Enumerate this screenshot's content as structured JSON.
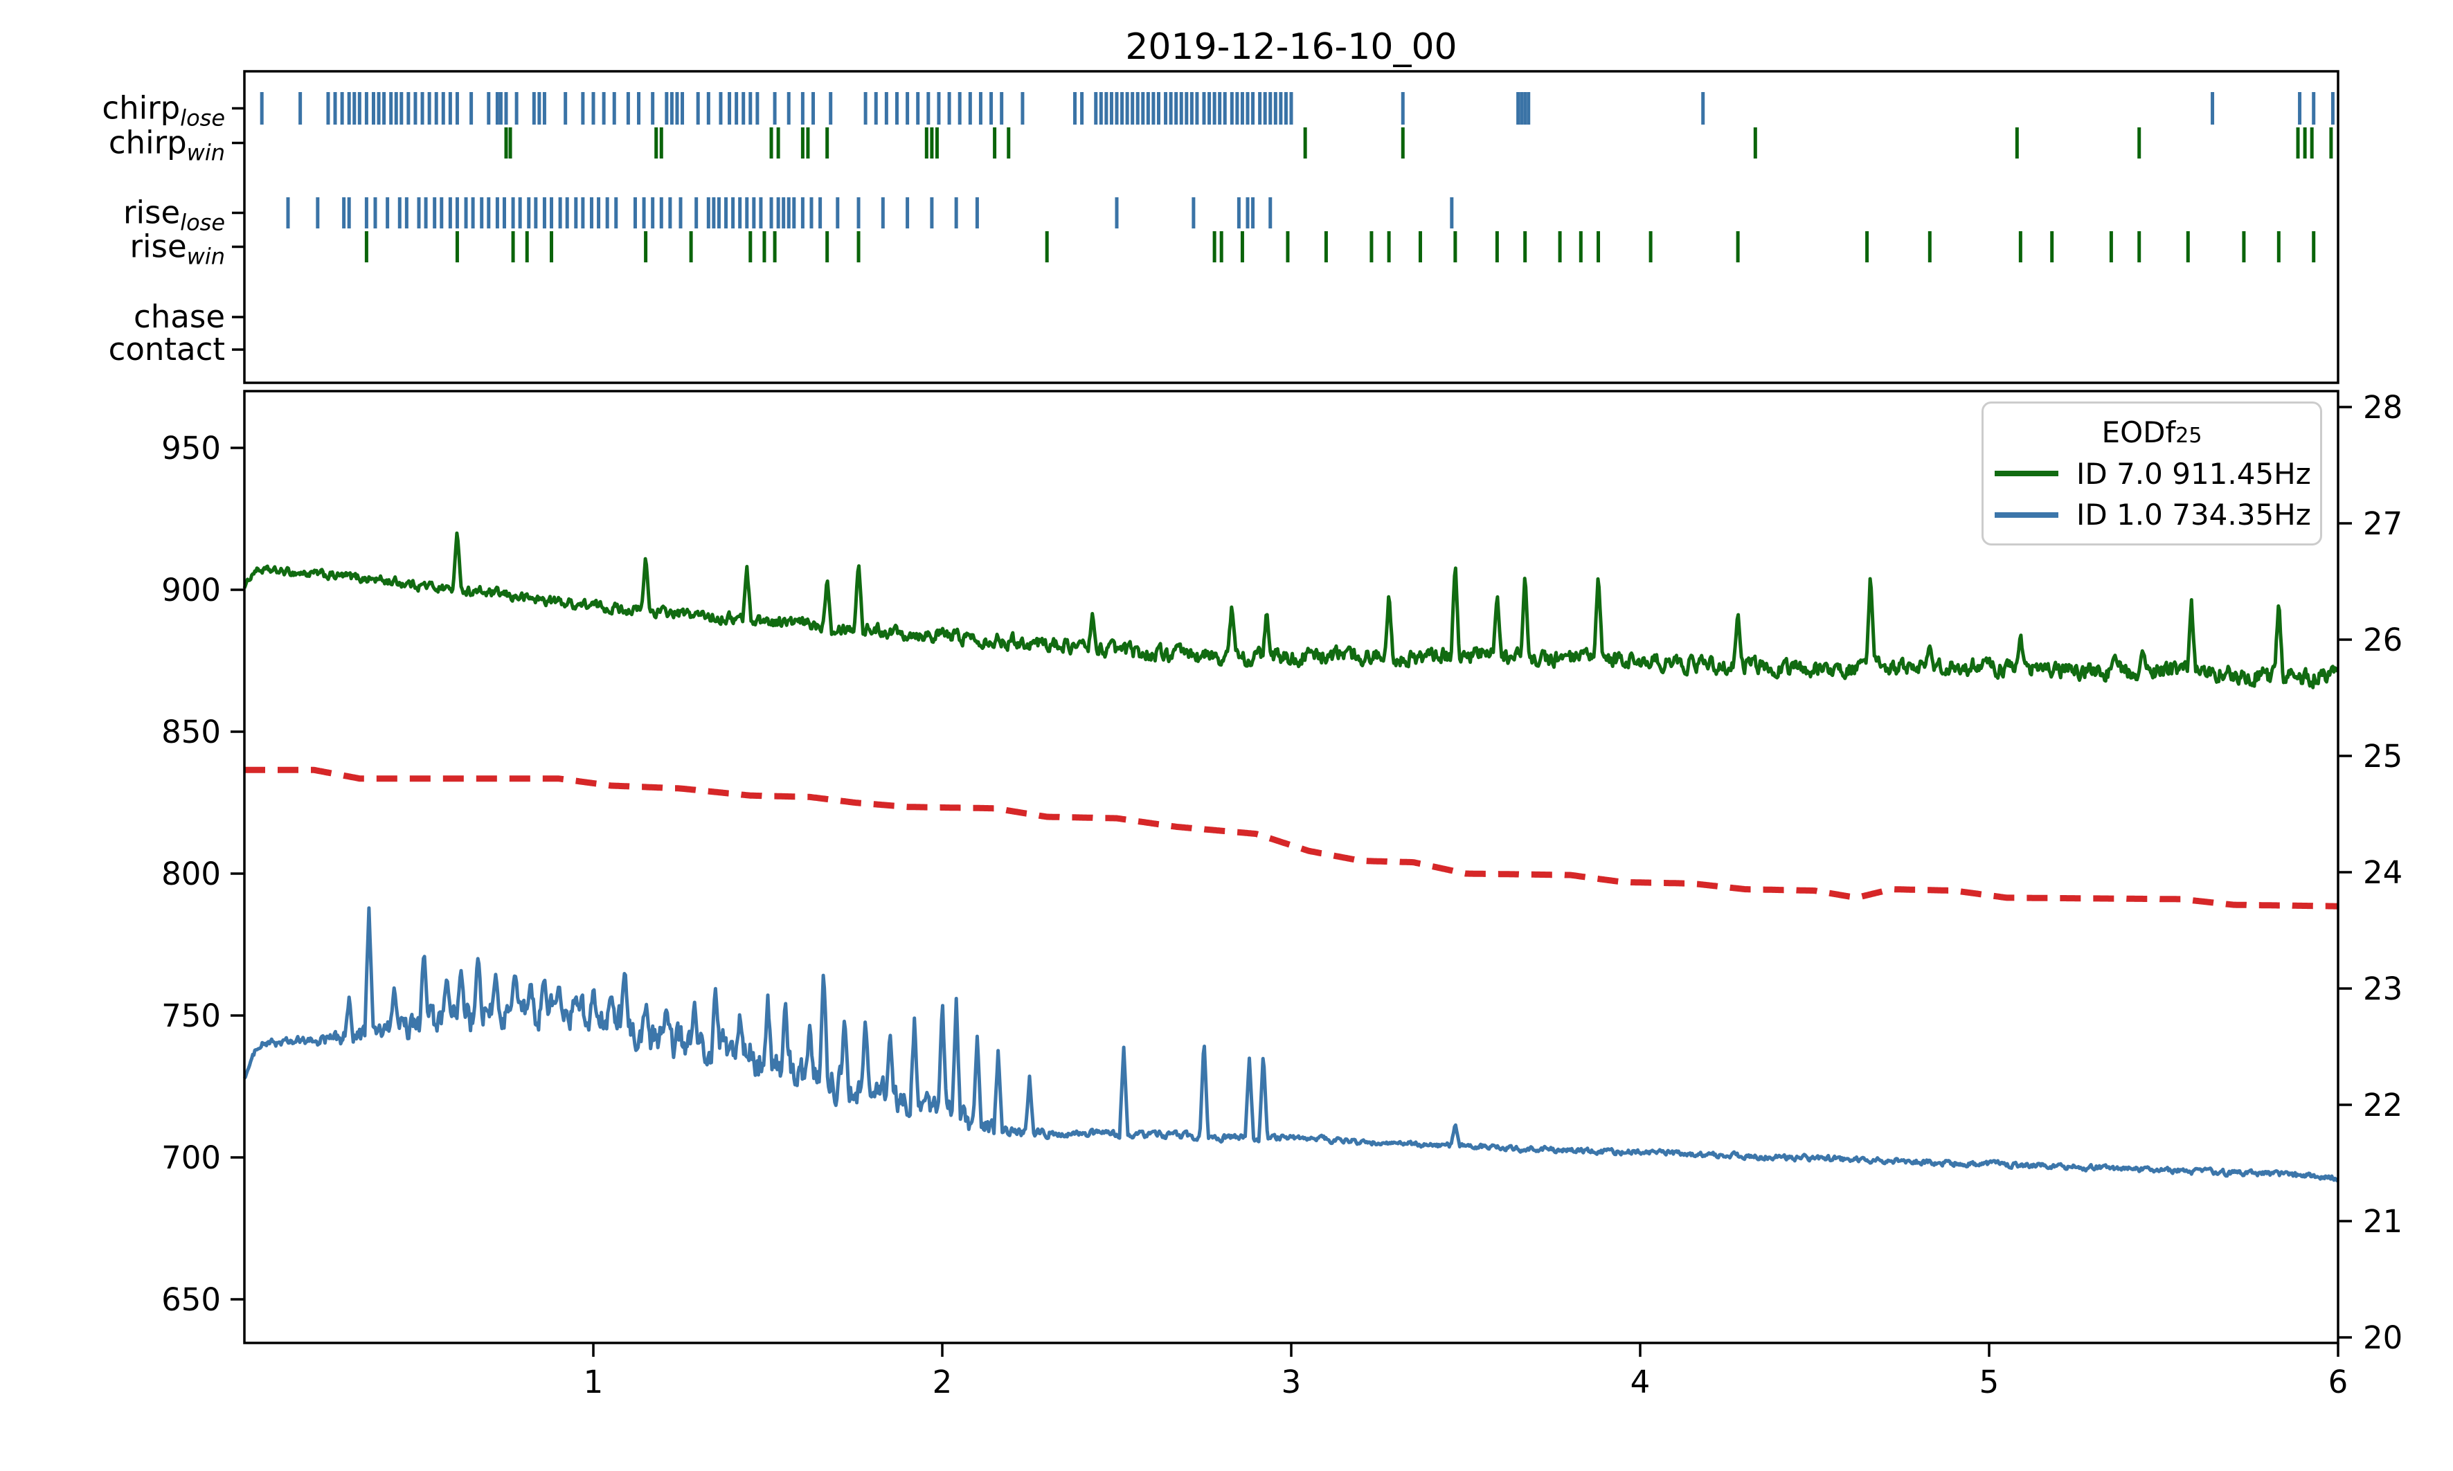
{
  "title": "2019-12-16-10_00",
  "chart_data": {
    "type": "line",
    "title": "2019-12-16-10_00",
    "x_range": [
      0,
      6
    ],
    "x_ticks": [
      "1",
      "2",
      "3",
      "4",
      "5",
      "6"
    ],
    "left_axis": {
      "ticks": [
        "650",
        "700",
        "750",
        "800",
        "850",
        "900",
        "950"
      ],
      "range": [
        634,
        970
      ]
    },
    "right_axis": {
      "ticks": [
        "20",
        "21",
        "22",
        "23",
        "24",
        "25",
        "26",
        "27",
        "28"
      ],
      "range": [
        19.95,
        28.13
      ]
    },
    "raster": {
      "rows": [
        {
          "id": "chirp_lose",
          "label_base": "chirp",
          "label_sub": "lose",
          "color": "#3a73a6",
          "events": [
            0.05,
            0.16,
            0.24,
            0.26,
            0.28,
            0.3,
            0.315,
            0.33,
            0.35,
            0.37,
            0.385,
            0.4,
            0.42,
            0.435,
            0.45,
            0.47,
            0.49,
            0.51,
            0.53,
            0.55,
            0.57,
            0.59,
            0.61,
            0.65,
            0.7,
            0.725,
            0.735,
            0.75,
            0.78,
            0.83,
            0.845,
            0.86,
            0.92,
            0.97,
            1.0,
            1.03,
            1.06,
            1.1,
            1.13,
            1.17,
            1.21,
            1.225,
            1.24,
            1.255,
            1.3,
            1.33,
            1.365,
            1.39,
            1.41,
            1.43,
            1.45,
            1.47,
            1.52,
            1.56,
            1.6,
            1.63,
            1.68,
            1.78,
            1.81,
            1.84,
            1.87,
            1.9,
            1.93,
            1.96,
            1.99,
            2.02,
            2.05,
            2.08,
            2.11,
            2.14,
            2.17,
            2.23,
            2.38,
            2.4,
            2.44,
            2.455,
            2.47,
            2.485,
            2.5,
            2.515,
            2.53,
            2.545,
            2.56,
            2.575,
            2.59,
            2.605,
            2.62,
            2.64,
            2.655,
            2.67,
            2.685,
            2.7,
            2.715,
            2.73,
            2.75,
            2.765,
            2.78,
            2.795,
            2.81,
            2.83,
            2.845,
            2.86,
            2.875,
            2.89,
            2.91,
            2.925,
            2.94,
            2.955,
            2.97,
            2.985,
            3.0,
            3.32,
            3.65,
            3.66,
            3.67,
            3.68,
            4.18,
            5.64,
            5.89,
            5.93,
            5.985
          ]
        },
        {
          "id": "chirp_win",
          "label_base": "chirp",
          "label_sub": "win",
          "color": "#0a640a",
          "events": [
            0.75,
            0.762,
            1.18,
            1.195,
            1.51,
            1.53,
            1.6,
            1.615,
            1.67,
            1.955,
            1.97,
            1.985,
            2.15,
            2.19,
            3.04,
            3.32,
            4.33,
            5.08,
            5.43,
            5.885,
            5.905,
            5.925,
            5.98
          ]
        },
        {
          "id": "rise_lose",
          "label_base": "rise",
          "label_sub": "lose",
          "color": "#3a73a6",
          "events": [
            0.125,
            0.21,
            0.285,
            0.3,
            0.35,
            0.375,
            0.41,
            0.445,
            0.465,
            0.5,
            0.52,
            0.545,
            0.565,
            0.59,
            0.61,
            0.635,
            0.655,
            0.68,
            0.7,
            0.725,
            0.745,
            0.77,
            0.79,
            0.815,
            0.835,
            0.86,
            0.88,
            0.905,
            0.925,
            0.95,
            0.97,
            0.995,
            1.015,
            1.04,
            1.065,
            1.12,
            1.145,
            1.17,
            1.195,
            1.22,
            1.25,
            1.295,
            1.33,
            1.345,
            1.36,
            1.38,
            1.4,
            1.42,
            1.44,
            1.46,
            1.48,
            1.51,
            1.53,
            1.545,
            1.56,
            1.575,
            1.6,
            1.625,
            1.65,
            1.7,
            1.76,
            1.83,
            1.9,
            1.97,
            2.04,
            2.1,
            2.5,
            2.72,
            2.85,
            2.875,
            2.89,
            2.94,
            3.46
          ]
        },
        {
          "id": "rise_win",
          "label_base": "rise",
          "label_sub": "win",
          "color": "#0a640a",
          "events": [
            0.35,
            0.61,
            0.77,
            0.81,
            0.88,
            1.15,
            1.28,
            1.45,
            1.49,
            1.52,
            1.67,
            1.76,
            2.3,
            2.78,
            2.8,
            2.86,
            2.99,
            3.1,
            3.23,
            3.28,
            3.37,
            3.47,
            3.59,
            3.67,
            3.77,
            3.83,
            3.88,
            4.03,
            4.28,
            4.65,
            4.83,
            5.09,
            5.18,
            5.35,
            5.43,
            5.57,
            5.73,
            5.83,
            5.93
          ]
        },
        {
          "id": "chase",
          "label_base": "chase",
          "label_sub": "",
          "color": "#3a73a6",
          "events": []
        },
        {
          "id": "contact",
          "label_base": "contact",
          "label_sub": "",
          "color": "#3a73a6",
          "events": []
        }
      ]
    },
    "series": [
      {
        "name": "ID 7.0 911.45Hz",
        "color": "#116b11",
        "style": "solid",
        "keypoints": [
          [
            0.0,
            901,
            0.5
          ],
          [
            0.03,
            907,
            1.0
          ],
          [
            0.15,
            906,
            1.2
          ],
          [
            0.35,
            904,
            1.4
          ],
          [
            0.55,
            901,
            1.4
          ],
          [
            0.75,
            898,
            1.5
          ],
          [
            0.95,
            895,
            1.5
          ],
          [
            1.15,
            892.5,
            1.5
          ],
          [
            1.35,
            890.5,
            1.6
          ],
          [
            1.55,
            888.5,
            1.8
          ],
          [
            1.75,
            886.5,
            1.8
          ],
          [
            1.95,
            884.5,
            2.0
          ],
          [
            2.15,
            882.5,
            2.0
          ],
          [
            2.35,
            880.5,
            2.0
          ],
          [
            2.55,
            878,
            2.2
          ],
          [
            2.75,
            876.5,
            2.4
          ],
          [
            2.95,
            876,
            2.4
          ],
          [
            3.15,
            877,
            2.4
          ],
          [
            3.35,
            876,
            2.4
          ],
          [
            3.55,
            877,
            2.4
          ],
          [
            3.75,
            875.5,
            2.4
          ],
          [
            3.95,
            875,
            2.4
          ],
          [
            4.15,
            874,
            2.4
          ],
          [
            4.35,
            873,
            2.4
          ],
          [
            4.55,
            872,
            2.4
          ],
          [
            4.75,
            872.5,
            2.4
          ],
          [
            4.95,
            873,
            2.4
          ],
          [
            5.15,
            872,
            2.4
          ],
          [
            5.35,
            871,
            2.4
          ],
          [
            5.55,
            871,
            2.6
          ],
          [
            5.75,
            870,
            2.8
          ],
          [
            5.9,
            869,
            3.0
          ],
          [
            6.0,
            870,
            2.0
          ]
        ],
        "spikes": [
          [
            0.61,
            921
          ],
          [
            1.15,
            912
          ],
          [
            1.44,
            908
          ],
          [
            1.67,
            905
          ],
          [
            1.76,
            911
          ],
          [
            2.43,
            891
          ],
          [
            2.83,
            895
          ],
          [
            2.93,
            893
          ],
          [
            3.28,
            900
          ],
          [
            3.47,
            911
          ],
          [
            3.59,
            898
          ],
          [
            3.67,
            905
          ],
          [
            3.88,
            907
          ],
          [
            4.28,
            893
          ],
          [
            4.66,
            906
          ],
          [
            4.83,
            881
          ],
          [
            5.09,
            884
          ],
          [
            5.36,
            877
          ],
          [
            5.44,
            880
          ],
          [
            5.58,
            896
          ],
          [
            5.83,
            897
          ]
        ]
      },
      {
        "name": "ID 1.0 734.35Hz",
        "color": "#3c76aa",
        "style": "solid",
        "keypoints": [
          [
            0.0,
            728,
            0.5
          ],
          [
            0.04,
            740,
            1.0
          ],
          [
            0.2,
            741,
            1.5
          ],
          [
            0.35,
            743,
            3.0
          ],
          [
            0.5,
            746,
            4.0
          ],
          [
            0.65,
            749,
            4.5
          ],
          [
            0.8,
            752,
            4.5
          ],
          [
            0.95,
            751,
            4.5
          ],
          [
            1.1,
            746,
            5.0
          ],
          [
            1.25,
            741,
            5.5
          ],
          [
            1.4,
            737,
            5.5
          ],
          [
            1.55,
            731,
            5.5
          ],
          [
            1.7,
            726,
            5.0
          ],
          [
            1.85,
            721,
            4.5
          ],
          [
            2.0,
            716,
            4.0
          ],
          [
            2.1,
            711,
            3.0
          ],
          [
            2.2,
            709,
            1.5
          ],
          [
            2.4,
            708.5,
            1.0
          ],
          [
            2.6,
            708,
            1.0
          ],
          [
            2.8,
            707,
            1.0
          ],
          [
            3.0,
            707,
            0.8
          ],
          [
            3.2,
            705.5,
            0.8
          ],
          [
            3.5,
            704,
            0.8
          ],
          [
            3.8,
            702.5,
            0.8
          ],
          [
            4.1,
            701.5,
            0.8
          ],
          [
            4.4,
            700,
            0.8
          ],
          [
            4.7,
            699,
            0.8
          ],
          [
            5.0,
            697.5,
            0.8
          ],
          [
            5.3,
            696.5,
            0.8
          ],
          [
            5.6,
            695,
            0.8
          ],
          [
            5.8,
            694,
            0.9
          ],
          [
            6.0,
            693,
            0.8
          ]
        ],
        "spikes": [
          [
            0.3,
            757
          ],
          [
            0.357,
            789
          ],
          [
            0.43,
            762
          ],
          [
            0.515,
            775
          ],
          [
            0.58,
            763
          ],
          [
            0.62,
            766
          ],
          [
            0.67,
            771
          ],
          [
            0.72,
            766
          ],
          [
            0.775,
            765
          ],
          [
            0.82,
            760
          ],
          [
            0.86,
            763
          ],
          [
            0.9,
            762
          ],
          [
            0.95,
            758
          ],
          [
            1.0,
            760
          ],
          [
            1.05,
            757
          ],
          [
            1.09,
            764
          ],
          [
            1.15,
            755
          ],
          [
            1.21,
            752
          ],
          [
            1.29,
            753
          ],
          [
            1.35,
            758
          ],
          [
            1.42,
            750
          ],
          [
            1.5,
            755
          ],
          [
            1.55,
            752
          ],
          [
            1.62,
            748
          ],
          [
            1.66,
            764
          ],
          [
            1.72,
            752
          ],
          [
            1.78,
            750
          ],
          [
            1.85,
            745
          ],
          [
            1.92,
            748
          ],
          [
            2.0,
            755
          ],
          [
            2.04,
            756
          ],
          [
            2.1,
            742
          ],
          [
            2.16,
            738
          ],
          [
            2.25,
            728
          ],
          [
            2.52,
            739
          ],
          [
            2.75,
            742
          ],
          [
            2.88,
            735
          ],
          [
            2.92,
            737
          ],
          [
            3.47,
            712
          ]
        ]
      },
      {
        "name": "temperature-dashed",
        "color": "#d62728",
        "style": "dashed",
        "keypoints": [
          [
            0.0,
            836.5,
            0
          ],
          [
            0.2,
            836.5,
            0
          ],
          [
            0.33,
            833.5,
            0
          ],
          [
            0.9,
            833.5,
            0
          ],
          [
            1.05,
            831,
            0
          ],
          [
            1.25,
            830,
            0
          ],
          [
            1.45,
            827.5,
            0
          ],
          [
            1.62,
            827,
            0
          ],
          [
            1.75,
            825,
            0
          ],
          [
            1.9,
            823.5,
            0
          ],
          [
            2.15,
            823,
            0
          ],
          [
            2.3,
            820,
            0
          ],
          [
            2.5,
            819.5,
            0
          ],
          [
            2.67,
            816.5,
            0
          ],
          [
            2.9,
            814,
            0
          ],
          [
            3.05,
            808,
            0
          ],
          [
            3.2,
            804.5,
            0
          ],
          [
            3.35,
            804,
            0
          ],
          [
            3.5,
            800,
            0
          ],
          [
            3.8,
            799.5,
            0
          ],
          [
            3.95,
            797,
            0
          ],
          [
            4.15,
            796.5,
            0
          ],
          [
            4.3,
            794.5,
            0
          ],
          [
            4.5,
            794,
            0
          ],
          [
            4.62,
            791.5,
            0
          ],
          [
            4.72,
            794.5,
            0
          ],
          [
            4.9,
            794,
            0
          ],
          [
            5.05,
            791.5,
            0
          ],
          [
            5.55,
            791,
            0
          ],
          [
            5.7,
            789,
            0
          ],
          [
            6.0,
            788.5,
            0
          ]
        ],
        "spikes": []
      }
    ],
    "legend": {
      "title_base": "EODf",
      "title_sub": "25",
      "entries": [
        {
          "label": "ID 7.0 911.45Hz",
          "color": "#116b11"
        },
        {
          "label": "ID 1.0 734.35Hz",
          "color": "#3c76aa"
        }
      ]
    }
  }
}
